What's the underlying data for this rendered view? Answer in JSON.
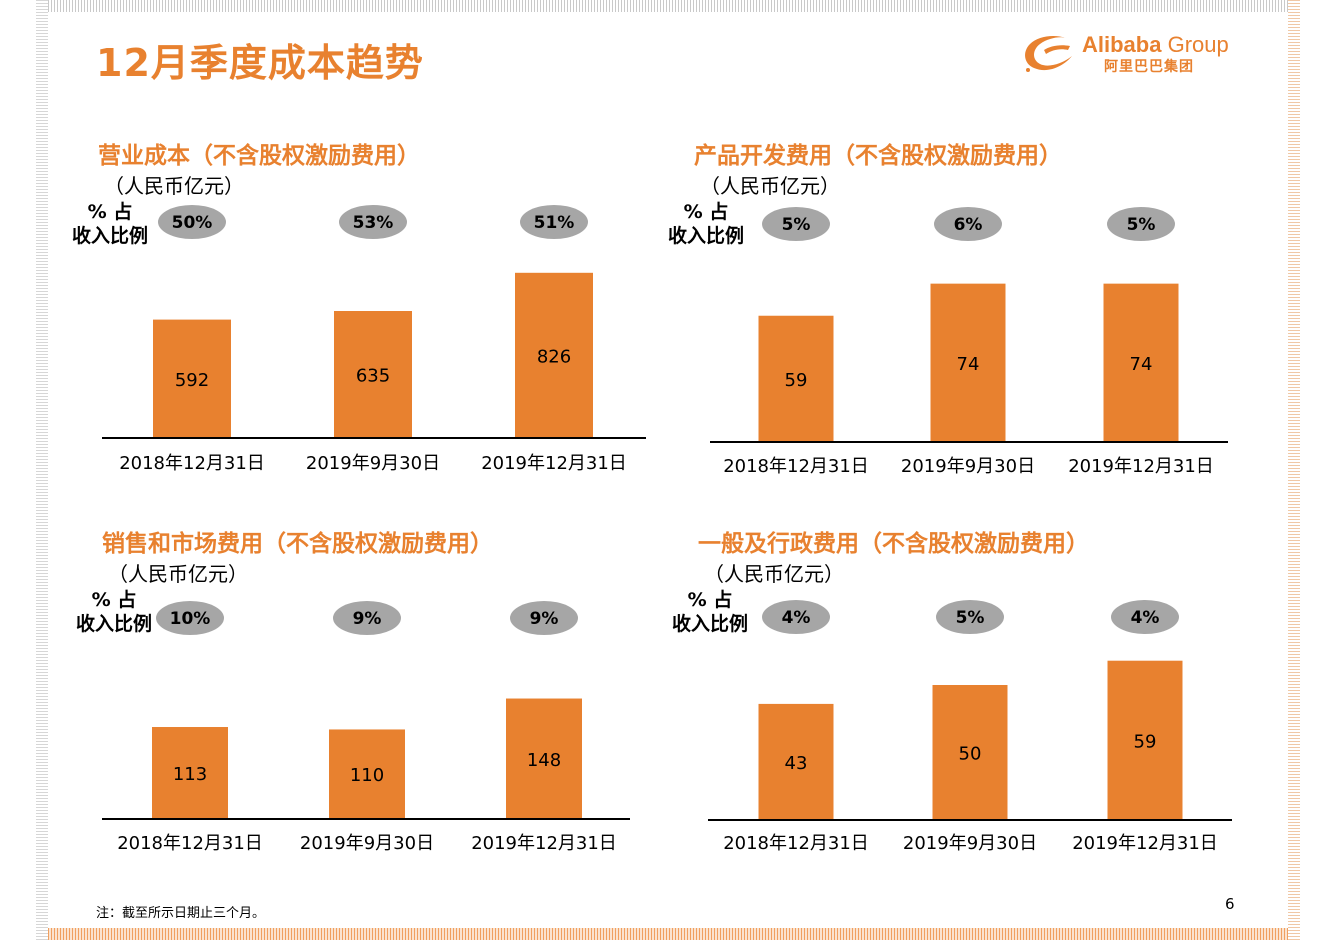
{
  "page": {
    "title": "12月季度成本趋势",
    "footnote": "注：截至所示日期止三个月。",
    "page_number": "6"
  },
  "logo": {
    "brand_en_bold": "Alibaba",
    "brand_en_light": " Group",
    "brand_cn": "阿里巴巴集团"
  },
  "colors": {
    "accent": "#e8812f",
    "bar": "#e8812f",
    "ellipse": "#a6a6a6",
    "axis": "#000000"
  },
  "chart_data": [
    {
      "type": "bar",
      "title": "营业成本（不含股权激励费用）",
      "unit": "（人民币亿元）",
      "pct_label_line1": "% 占",
      "pct_label_line2": "收入比例",
      "categories": [
        "2018年12月31日",
        "2019年9月30日",
        "2019年12月31日"
      ],
      "values": [
        592,
        635,
        826
      ],
      "value_labels": [
        "592",
        "635",
        "826"
      ],
      "pct_of_revenue": [
        "50%",
        "53%",
        "51%"
      ]
    },
    {
      "type": "bar",
      "title": "产品开发费用（不含股权激励费用）",
      "unit": "（人民币亿元）",
      "pct_label_line1": "% 占",
      "pct_label_line2": "收入比例",
      "categories": [
        "2018年12月31日",
        "2019年9月30日",
        "2019年12月31日"
      ],
      "values": [
        59,
        74,
        74
      ],
      "value_labels": [
        "59",
        "74",
        "74"
      ],
      "pct_of_revenue": [
        "5%",
        "6%",
        "5%"
      ]
    },
    {
      "type": "bar",
      "title": "销售和市场费用（不含股权激励费用）",
      "unit": "（人民币亿元）",
      "pct_label_line1": "% 占",
      "pct_label_line2": "收入比例",
      "categories": [
        "2018年12月31日",
        "2019年9月30日",
        "2019年12月31日"
      ],
      "values": [
        113,
        110,
        148
      ],
      "value_labels": [
        "113",
        "110",
        "148"
      ],
      "pct_of_revenue": [
        "10%",
        "9%",
        "9%"
      ]
    },
    {
      "type": "bar",
      "title": "一般及行政费用（不含股权激励费用）",
      "unit": "（人民币亿元）",
      "pct_label_line1": "% 占",
      "pct_label_line2": "收入比例",
      "categories": [
        "2018年12月31日",
        "2019年9月30日",
        "2019年12月31日"
      ],
      "values": [
        43,
        50,
        59
      ],
      "value_labels": [
        "43",
        "50",
        "59"
      ],
      "pct_of_revenue": [
        "4%",
        "5%",
        "4%"
      ]
    }
  ]
}
